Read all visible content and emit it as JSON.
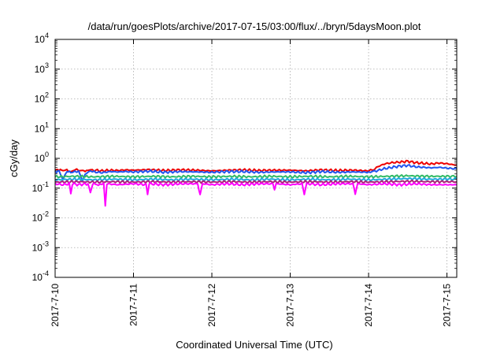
{
  "chart_data": {
    "type": "line",
    "title": "/data/run/goesPlots/archive/2017-07-15/03:00/flux/../bryn/5daysMoon.plot",
    "xlabel": "Coordinated Universal Time (UTC)",
    "ylabel": "cGy/day",
    "yscale": "log",
    "ylim": [
      0.0001,
      10000
    ],
    "ytick_exponents": [
      -4,
      -3,
      -2,
      -1,
      0,
      1,
      2,
      3,
      4
    ],
    "xlim": [
      "2017-07-10",
      "2017-07-15 03:00"
    ],
    "x_tick_labels": [
      "2017-7-10",
      "2017-7-11",
      "2017-7-12",
      "2017-7-13",
      "2017-7-14",
      "2017-7-15"
    ],
    "grid": true,
    "series": [
      {
        "color": "#ee0000",
        "x_days": [
          0,
          0.05,
          0.1,
          0.15,
          0.2,
          0.25,
          0.3,
          0.35,
          0.4,
          0.45,
          0.5,
          0.6,
          0.7,
          0.8,
          0.9,
          1.0,
          1.2,
          1.4,
          1.6,
          1.8,
          2.0,
          2.2,
          2.4,
          2.6,
          2.8,
          3.0,
          3.2,
          3.4,
          3.6,
          3.8,
          4.0,
          4.05,
          4.1,
          4.2,
          4.3,
          4.4,
          4.5,
          4.6,
          4.7,
          4.8,
          4.9,
          5.0,
          5.1,
          5.125
        ],
        "values": [
          0.4,
          0.42,
          0.38,
          0.4,
          0.36,
          0.41,
          0.39,
          0.4,
          0.37,
          0.41,
          0.4,
          0.38,
          0.4,
          0.39,
          0.41,
          0.4,
          0.42,
          0.39,
          0.41,
          0.4,
          0.38,
          0.4,
          0.41,
          0.39,
          0.4,
          0.4,
          0.38,
          0.41,
          0.39,
          0.4,
          0.38,
          0.4,
          0.5,
          0.65,
          0.72,
          0.75,
          0.8,
          0.72,
          0.68,
          0.65,
          0.7,
          0.66,
          0.6,
          0.6
        ]
      },
      {
        "color": "#2255ee",
        "x_days": [
          0,
          0.05,
          0.1,
          0.15,
          0.2,
          0.25,
          0.3,
          0.35,
          0.4,
          0.45,
          0.5,
          0.6,
          0.7,
          0.8,
          0.9,
          1.0,
          1.2,
          1.4,
          1.6,
          1.8,
          2.0,
          2.2,
          2.4,
          2.6,
          2.8,
          3.0,
          3.2,
          3.4,
          3.6,
          3.8,
          4.0,
          4.05,
          4.1,
          4.2,
          4.3,
          4.4,
          4.5,
          4.6,
          4.7,
          4.8,
          4.9,
          5.0,
          5.1,
          5.125
        ],
        "values": [
          0.36,
          0.37,
          0.2,
          0.36,
          0.34,
          0.37,
          0.35,
          0.18,
          0.34,
          0.36,
          0.35,
          0.33,
          0.36,
          0.35,
          0.36,
          0.35,
          0.37,
          0.34,
          0.36,
          0.35,
          0.34,
          0.36,
          0.36,
          0.34,
          0.35,
          0.35,
          0.33,
          0.36,
          0.34,
          0.35,
          0.34,
          0.35,
          0.38,
          0.45,
          0.5,
          0.55,
          0.58,
          0.52,
          0.5,
          0.48,
          0.5,
          0.47,
          0.45,
          0.45
        ]
      },
      {
        "color": "#33bb66",
        "x_days": [
          0,
          0.25,
          0.5,
          0.75,
          1.0,
          1.25,
          1.5,
          1.75,
          2.0,
          2.25,
          2.5,
          2.75,
          3.0,
          3.25,
          3.5,
          3.75,
          4.0,
          4.25,
          4.5,
          4.75,
          5.0,
          5.125
        ],
        "values": [
          0.24,
          0.25,
          0.24,
          0.25,
          0.24,
          0.25,
          0.24,
          0.25,
          0.24,
          0.25,
          0.24,
          0.25,
          0.24,
          0.25,
          0.24,
          0.25,
          0.24,
          0.25,
          0.26,
          0.25,
          0.25,
          0.25
        ]
      },
      {
        "color": "#22aadd",
        "x_days": [
          0,
          0.25,
          0.5,
          0.75,
          1.0,
          1.25,
          1.5,
          1.75,
          2.0,
          2.25,
          2.5,
          2.75,
          3.0,
          3.25,
          3.5,
          3.75,
          4.0,
          4.25,
          4.5,
          4.75,
          5.0,
          5.125
        ],
        "values": [
          0.19,
          0.2,
          0.19,
          0.2,
          0.19,
          0.2,
          0.19,
          0.2,
          0.19,
          0.2,
          0.19,
          0.2,
          0.19,
          0.2,
          0.19,
          0.2,
          0.19,
          0.2,
          0.21,
          0.2,
          0.2,
          0.2
        ]
      },
      {
        "color": "#aa2277",
        "x_days": [
          0,
          0.25,
          0.5,
          0.75,
          1.0,
          1.25,
          1.5,
          1.75,
          2.0,
          2.25,
          2.5,
          2.75,
          3.0,
          3.25,
          3.5,
          3.75,
          4.0,
          4.25,
          4.5,
          4.75,
          5.0,
          5.125
        ],
        "values": [
          0.16,
          0.165,
          0.16,
          0.165,
          0.16,
          0.165,
          0.16,
          0.165,
          0.16,
          0.165,
          0.16,
          0.165,
          0.16,
          0.165,
          0.16,
          0.165,
          0.16,
          0.165,
          0.17,
          0.165,
          0.165,
          0.165
        ]
      },
      {
        "color": "#ff00ff",
        "x_days": [
          0,
          0.1,
          0.18,
          0.2,
          0.22,
          0.3,
          0.42,
          0.45,
          0.48,
          0.55,
          0.62,
          0.64,
          0.66,
          0.8,
          1.0,
          1.16,
          1.18,
          1.2,
          1.4,
          1.6,
          1.82,
          1.85,
          1.88,
          2.0,
          2.2,
          2.4,
          2.6,
          2.78,
          2.8,
          2.82,
          3.0,
          3.15,
          3.18,
          3.21,
          3.4,
          3.6,
          3.8,
          3.83,
          3.86,
          4.0,
          4.2,
          4.4,
          4.6,
          4.8,
          5.0,
          5.125
        ],
        "values": [
          0.14,
          0.13,
          0.14,
          0.065,
          0.14,
          0.13,
          0.14,
          0.068,
          0.14,
          0.13,
          0.14,
          0.025,
          0.14,
          0.13,
          0.14,
          0.13,
          0.065,
          0.14,
          0.13,
          0.14,
          0.14,
          0.06,
          0.14,
          0.13,
          0.14,
          0.13,
          0.14,
          0.14,
          0.09,
          0.14,
          0.13,
          0.14,
          0.06,
          0.14,
          0.13,
          0.14,
          0.14,
          0.065,
          0.14,
          0.13,
          0.14,
          0.13,
          0.14,
          0.13,
          0.13,
          0.13
        ]
      }
    ]
  }
}
